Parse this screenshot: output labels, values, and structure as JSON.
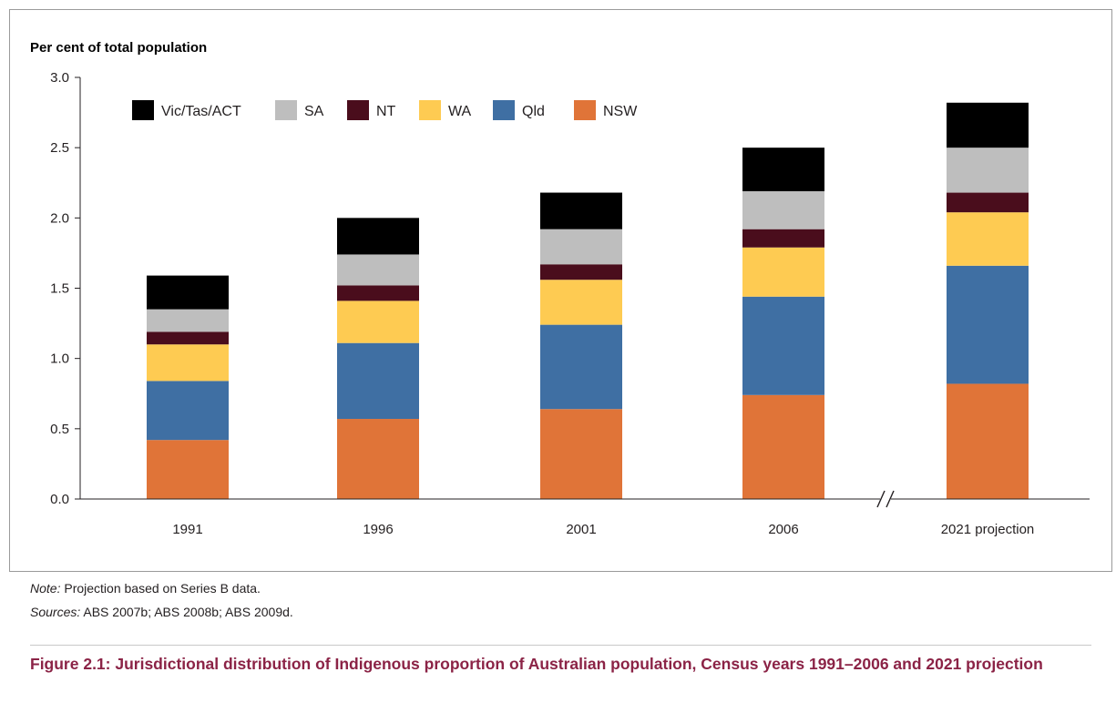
{
  "chart_data": {
    "type": "bar",
    "stacked": true,
    "ylabel": "Per cent of total population",
    "ylim": [
      0,
      3.0
    ],
    "yticks": [
      "0.0",
      "0.5",
      "1.0",
      "1.5",
      "2.0",
      "2.5",
      "3.0"
    ],
    "categories": [
      "1991",
      "1996",
      "2001",
      "2006",
      "2021 projection"
    ],
    "axis_break_before_last": true,
    "series": [
      {
        "name": "NSW",
        "color": "#e07438",
        "values": [
          0.42,
          0.57,
          0.64,
          0.74,
          0.82
        ]
      },
      {
        "name": "Qld",
        "color": "#3f6fa3",
        "values": [
          0.42,
          0.54,
          0.6,
          0.7,
          0.84
        ]
      },
      {
        "name": "WA",
        "color": "#fecb52",
        "values": [
          0.26,
          0.3,
          0.32,
          0.35,
          0.38
        ]
      },
      {
        "name": "NT",
        "color": "#4a0d1c",
        "values": [
          0.09,
          0.11,
          0.11,
          0.13,
          0.14
        ]
      },
      {
        "name": "SA",
        "color": "#bebebe",
        "values": [
          0.16,
          0.22,
          0.25,
          0.27,
          0.32
        ]
      },
      {
        "name": "Vic/Tas/ACT",
        "color": "#000000",
        "values": [
          0.24,
          0.26,
          0.26,
          0.31,
          0.32
        ]
      }
    ],
    "legend_order": [
      "Vic/Tas/ACT",
      "SA",
      "NT",
      "WA",
      "Qld",
      "NSW"
    ],
    "legend_placement": "top-left"
  },
  "notes": {
    "note_label": "Note:",
    "note_text": "Projection based on Series B data.",
    "sources_label": "Sources:",
    "sources_text": "ABS 2007b; ABS 2008b; ABS 2009d."
  },
  "caption": {
    "text": "Figure 2.1: Jurisdictional distribution of Indigenous proportion of Australian population, Census years 1991–2006 and 2021 projection"
  },
  "colors": {
    "caption": "#8b2346",
    "axis": "#231f20"
  }
}
